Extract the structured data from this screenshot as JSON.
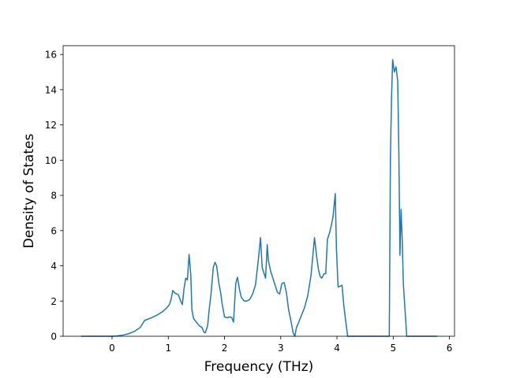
{
  "chart_data": {
    "type": "line",
    "title": "",
    "xlabel": "Frequency (THz)",
    "ylabel": "Density of States",
    "xlim": [
      -0.87,
      6.09
    ],
    "ylim": [
      0,
      16.5
    ],
    "xticks": [
      0,
      1,
      2,
      3,
      4,
      5,
      6
    ],
    "yticks": [
      0,
      2,
      4,
      6,
      8,
      10,
      12,
      14,
      16
    ],
    "grid": false,
    "legend": "none",
    "line_color": "#1f77b4",
    "series": [
      {
        "x": [
          -0.55,
          -0.3,
          -0.1,
          0.0,
          0.1,
          0.2,
          0.3,
          0.4,
          0.5,
          0.55,
          0.58,
          0.62,
          0.7,
          0.8,
          0.9,
          0.97,
          1.02,
          1.05,
          1.08,
          1.12,
          1.18,
          1.22,
          1.25,
          1.28,
          1.31,
          1.34,
          1.37,
          1.4,
          1.42,
          1.45,
          1.5,
          1.55,
          1.6,
          1.63,
          1.66,
          1.7,
          1.73,
          1.76,
          1.8,
          1.83,
          1.86,
          1.9,
          1.93,
          1.96,
          2.0,
          2.05,
          2.1,
          2.13,
          2.16,
          2.2,
          2.23,
          2.27,
          2.3,
          2.35,
          2.4,
          2.45,
          2.5,
          2.55,
          2.6,
          2.64,
          2.67,
          2.7,
          2.73,
          2.76,
          2.78,
          2.82,
          2.86,
          2.9,
          2.94,
          2.98,
          3.02,
          3.06,
          3.1,
          3.14,
          3.18,
          3.22,
          3.25,
          3.28,
          3.32,
          3.37,
          3.42,
          3.48,
          3.54,
          3.6,
          3.64,
          3.67,
          3.7,
          3.73,
          3.77,
          3.8,
          3.83,
          3.87,
          3.9,
          3.93,
          3.97,
          3.99,
          4.02,
          4.06,
          4.09,
          4.12,
          4.15,
          4.19,
          4.3,
          4.6,
          4.8,
          4.93,
          4.95,
          4.97,
          4.99,
          5.02,
          5.05,
          5.08,
          5.1,
          5.12,
          5.14,
          5.16,
          5.18,
          5.21,
          5.24,
          5.27,
          5.4,
          5.6,
          5.78
        ],
        "y": [
          0,
          0,
          0,
          0,
          0.02,
          0.07,
          0.15,
          0.28,
          0.5,
          0.75,
          0.9,
          0.95,
          1.05,
          1.2,
          1.4,
          1.6,
          1.8,
          2.1,
          2.6,
          2.45,
          2.35,
          2.0,
          1.8,
          2.7,
          3.3,
          3.2,
          4.65,
          3.5,
          1.5,
          1.0,
          0.8,
          0.6,
          0.5,
          0.25,
          0.2,
          0.6,
          1.6,
          2.4,
          3.9,
          4.2,
          4.0,
          3.0,
          2.5,
          1.8,
          1.1,
          1.05,
          1.1,
          1.05,
          0.8,
          3.0,
          3.35,
          2.6,
          2.2,
          2.0,
          2.0,
          2.1,
          2.4,
          2.9,
          4.3,
          5.6,
          3.9,
          3.6,
          3.3,
          5.2,
          4.3,
          3.7,
          3.3,
          2.9,
          2.5,
          2.4,
          3.0,
          3.05,
          2.5,
          1.5,
          0.9,
          0.2,
          0.0,
          0.5,
          0.8,
          1.2,
          1.6,
          2.3,
          3.5,
          5.6,
          4.5,
          3.8,
          3.4,
          3.3,
          3.55,
          3.55,
          5.5,
          5.9,
          6.3,
          6.8,
          8.1,
          5.0,
          2.8,
          2.85,
          2.9,
          1.8,
          1.0,
          0.0,
          0,
          0,
          0,
          0,
          10.0,
          13.5,
          15.7,
          15.0,
          15.3,
          14.5,
          10.5,
          4.6,
          7.2,
          5.5,
          3.0,
          1.5,
          0.0,
          0,
          0,
          0,
          0
        ]
      }
    ]
  }
}
